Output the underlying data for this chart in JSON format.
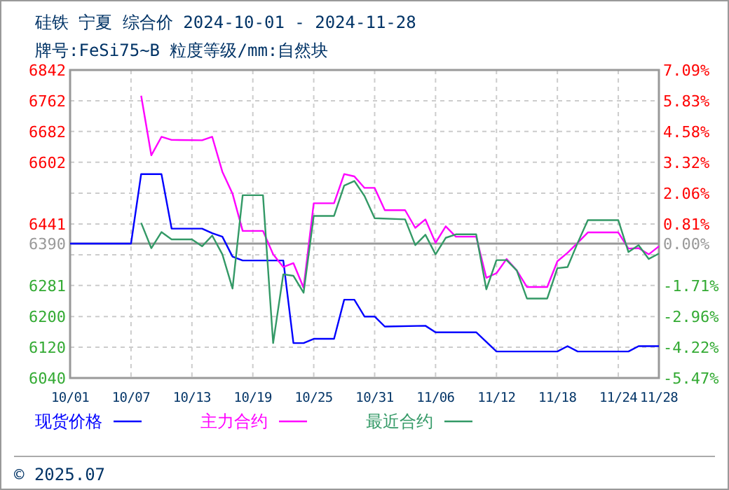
{
  "chart_data": {
    "type": "line",
    "title": "硅铁 宁夏 综合价 2024-10-01 - 2024-11-28",
    "subtitle": "牌号:FeSi75~B 粒度等级/mm:自然块",
    "xlim": [
      "2024-10-01",
      "2024-11-28"
    ],
    "xticks": [
      {
        "value": "2024-10-01",
        "label": "10/01"
      },
      {
        "value": "2024-10-07",
        "label": "10/07"
      },
      {
        "value": "2024-10-13",
        "label": "10/13"
      },
      {
        "value": "2024-10-19",
        "label": "10/19"
      },
      {
        "value": "2024-10-25",
        "label": "10/25"
      },
      {
        "value": "2024-10-31",
        "label": "10/31"
      },
      {
        "value": "2024-11-06",
        "label": "11/06"
      },
      {
        "value": "2024-11-12",
        "label": "11/12"
      },
      {
        "value": "2024-11-18",
        "label": "11/18"
      },
      {
        "value": "2024-11-24",
        "label": "11/24"
      },
      {
        "value": "2024-11-28",
        "label": "11/28"
      }
    ],
    "ylim": [
      6040,
      6842
    ],
    "yticks": [
      6842,
      6762,
      6682,
      6602,
      {
        "value": 6521,
        "label": null
      },
      6441,
      6390,
      {
        "value": 6361,
        "label": null
      },
      6281,
      6200,
      6120,
      6040
    ],
    "y2lim": [
      -5.47,
      7.09
    ],
    "y2ticks": [
      {
        "value": 7.09,
        "label": "7.09%"
      },
      {
        "value": 5.83,
        "label": "5.83%"
      },
      {
        "value": 4.58,
        "label": "4.58%"
      },
      {
        "value": 3.32,
        "label": "3.32%"
      },
      {
        "value": 2.06,
        "label": "2.06%"
      },
      {
        "value": 0.81,
        "label": "0.81%"
      },
      {
        "value": 0.0,
        "label": "0.00%"
      },
      {
        "value": -0.46,
        "label": null
      },
      {
        "value": -1.71,
        "label": "-1.71%"
      },
      {
        "value": -2.96,
        "label": "-2.96%"
      },
      {
        "value": -4.22,
        "label": "-4.22%"
      },
      {
        "value": -5.47,
        "label": "-5.47%"
      }
    ],
    "ref_lines": [
      {
        "axis": "y",
        "value": 6390,
        "color": "#999999"
      }
    ],
    "grid": true,
    "legend": "bottom",
    "marker": "none",
    "line_style": "solid",
    "annotations": [
      "© 2025.07"
    ],
    "series": [
      {
        "name": "现货价格",
        "color": "#0000ff",
        "x": [
          "2024-10-01",
          "2024-10-07",
          "2024-10-08",
          "2024-10-10",
          "2024-10-11",
          "2024-10-14",
          "2024-10-15",
          "2024-10-16",
          "2024-10-17",
          "2024-10-18",
          "2024-10-22",
          "2024-10-23",
          "2024-10-24",
          "2024-10-25",
          "2024-10-27",
          "2024-10-28",
          "2024-10-29",
          "2024-10-30",
          "2024-10-31",
          "2024-11-01",
          "2024-11-05",
          "2024-11-06",
          "2024-11-10",
          "2024-11-12",
          "2024-11-18",
          "2024-11-19",
          "2024-11-20",
          "2024-11-25",
          "2024-11-26",
          "2024-11-28"
        ],
        "values": [
          6390,
          6390,
          6571,
          6571,
          6429,
          6429,
          6417,
          6408,
          6356,
          6346,
          6346,
          6131,
          6131,
          6142,
          6142,
          6244,
          6244,
          6200,
          6200,
          6174,
          6176,
          6159,
          6159,
          6109,
          6109,
          6123,
          6109,
          6109,
          6123,
          6123
        ]
      },
      {
        "name": "主力合约",
        "color": "#ff00ff",
        "x": [
          "2024-10-08",
          "2024-10-09",
          "2024-10-10",
          "2024-10-11",
          "2024-10-14",
          "2024-10-15",
          "2024-10-16",
          "2024-10-17",
          "2024-10-18",
          "2024-10-20",
          "2024-10-21",
          "2024-10-22",
          "2024-10-23",
          "2024-10-24",
          "2024-10-25",
          "2024-10-27",
          "2024-10-28",
          "2024-10-29",
          "2024-10-30",
          "2024-10-31",
          "2024-11-01",
          "2024-11-03",
          "2024-11-04",
          "2024-11-05",
          "2024-11-06",
          "2024-11-07",
          "2024-11-08",
          "2024-11-10",
          "2024-11-11",
          "2024-11-12",
          "2024-11-13",
          "2024-11-14",
          "2024-11-15",
          "2024-11-17",
          "2024-11-18",
          "2024-11-19",
          "2024-11-20",
          "2024-11-21",
          "2024-11-24",
          "2024-11-25",
          "2024-11-26",
          "2024-11-27",
          "2024-11-28"
        ],
        "values": [
          6775,
          6620,
          6668,
          6660,
          6659,
          6668,
          6577,
          6520,
          6423,
          6423,
          6362,
          6329,
          6339,
          6275,
          6495,
          6495,
          6571,
          6565,
          6535,
          6535,
          6477,
          6477,
          6431,
          6453,
          6392,
          6435,
          6408,
          6408,
          6301,
          6313,
          6350,
          6320,
          6277,
          6277,
          6344,
          6366,
          6392,
          6419,
          6419,
          6377,
          6378,
          6362,
          6383
        ]
      },
      {
        "name": "最近合约",
        "color": "#339966",
        "x": [
          "2024-10-08",
          "2024-10-09",
          "2024-10-10",
          "2024-10-11",
          "2024-10-13",
          "2024-10-14",
          "2024-10-15",
          "2024-10-16",
          "2024-10-17",
          "2024-10-18",
          "2024-10-20",
          "2024-10-21",
          "2024-10-22",
          "2024-10-23",
          "2024-10-24",
          "2024-10-25",
          "2024-10-27",
          "2024-10-28",
          "2024-10-29",
          "2024-10-30",
          "2024-10-31",
          "2024-11-03",
          "2024-11-04",
          "2024-11-05",
          "2024-11-06",
          "2024-11-07",
          "2024-11-08",
          "2024-11-10",
          "2024-11-11",
          "2024-11-12",
          "2024-11-13",
          "2024-11-14",
          "2024-11-15",
          "2024-11-17",
          "2024-11-18",
          "2024-11-19",
          "2024-11-20",
          "2024-11-21",
          "2024-11-24",
          "2024-11-25",
          "2024-11-26",
          "2024-11-27",
          "2024-11-28"
        ],
        "values": [
          6444,
          6378,
          6420,
          6401,
          6401,
          6383,
          6411,
          6362,
          6273,
          6516,
          6516,
          6131,
          6310,
          6306,
          6262,
          6462,
          6462,
          6541,
          6553,
          6514,
          6456,
          6453,
          6386,
          6413,
          6362,
          6405,
          6414,
          6414,
          6271,
          6347,
          6347,
          6320,
          6247,
          6247,
          6326,
          6329,
          6392,
          6451,
          6451,
          6368,
          6386,
          6350,
          6364
        ]
      }
    ]
  }
}
